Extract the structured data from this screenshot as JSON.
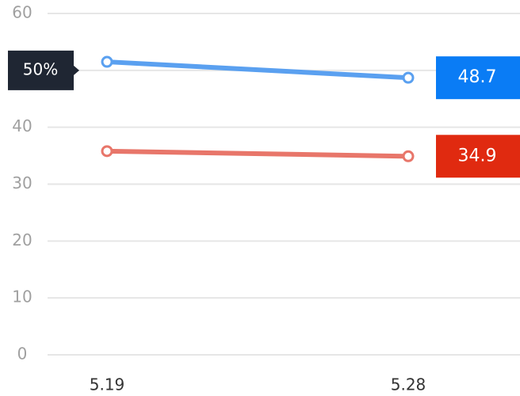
{
  "chart_data": {
    "type": "line",
    "categories": [
      "5.19",
      "5.28"
    ],
    "series": [
      {
        "color": "#5aa0f0",
        "values": [
          51.5,
          48.7
        ]
      },
      {
        "color": "#e8766a",
        "values": [
          35.8,
          34.9
        ]
      }
    ],
    "ylim": [
      0,
      60
    ],
    "yticks": [
      0,
      10,
      20,
      30,
      40,
      {
        "value": 50,
        "label": "50%"
      },
      60
    ],
    "grid": true
  }
}
